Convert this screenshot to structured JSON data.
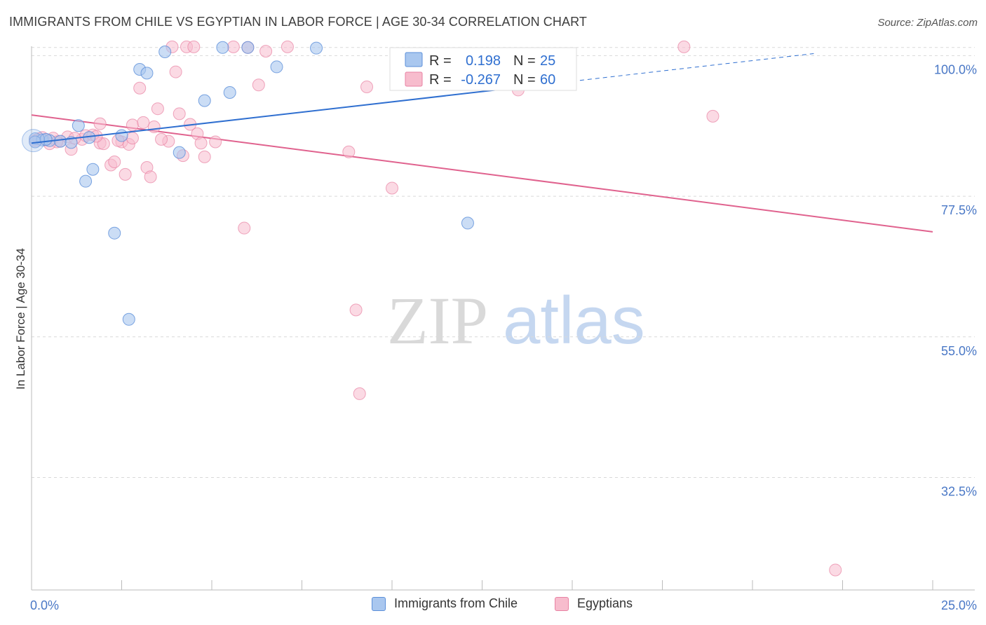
{
  "title": "IMMIGRANTS FROM CHILE VS EGYPTIAN IN LABOR FORCE | AGE 30-34 CORRELATION CHART",
  "source": "Source: ZipAtlas.com",
  "watermark": {
    "zip": "ZIP",
    "atlas": "atlas"
  },
  "colors": {
    "blue_fill": "#a9c7ef",
    "blue_stroke": "#5b8fd9",
    "blue_line": "#2f6fd0",
    "pink_fill": "#f7bccd",
    "pink_stroke": "#e882a3",
    "pink_line": "#e0628e",
    "axis_label": "#4a78c6",
    "grid": "#d9d9d9"
  },
  "legend": {
    "rows": [
      {
        "r_label": "R =",
        "r_value": "0.198",
        "n_label": "N =",
        "n_value": "25"
      },
      {
        "r_label": "R =",
        "r_value": "-0.267",
        "n_label": "N =",
        "n_value": "60"
      }
    ]
  },
  "bottom_legend": {
    "series1": "Immigrants from Chile",
    "series2": "Egyptians"
  },
  "chart_data": {
    "type": "scatter",
    "title": "IMMIGRANTS FROM CHILE VS EGYPTIAN IN LABOR FORCE | AGE 30-34 CORRELATION CHART",
    "xlabel": "",
    "ylabel": "In Labor Force | Age 30-34",
    "xlim": [
      0,
      25
    ],
    "ylim": [
      14.5,
      101.5
    ],
    "x_tick_labels": [
      "0.0%",
      "25.0%"
    ],
    "y_ticks": [
      32.5,
      55.0,
      77.5,
      100.0
    ],
    "y_tick_labels": [
      "32.5%",
      "55.0%",
      "77.5%",
      "100.0%"
    ],
    "grid": true,
    "series": [
      {
        "name": "Immigrants from Chile",
        "r": 0.198,
        "n": 25,
        "trend": {
          "x0": 0,
          "y0": 86.0,
          "x1": 25,
          "y1": 102.5,
          "solid_until_x": 15
        },
        "points": [
          [
            0.1,
            86.7
          ],
          [
            0.3,
            86.5
          ],
          [
            0.5,
            86.4
          ],
          [
            0.8,
            86.3
          ],
          [
            1.1,
            86.1
          ],
          [
            1.3,
            88.8
          ],
          [
            1.6,
            86.9
          ],
          [
            2.5,
            87.2
          ],
          [
            1.7,
            81.8
          ],
          [
            1.5,
            79.9
          ],
          [
            2.3,
            71.6
          ],
          [
            2.7,
            57.8
          ],
          [
            3.0,
            97.8
          ],
          [
            3.2,
            97.2
          ],
          [
            3.7,
            100.6
          ],
          [
            4.1,
            84.5
          ],
          [
            4.8,
            92.8
          ],
          [
            5.5,
            94.1
          ],
          [
            5.3,
            101.3
          ],
          [
            6.0,
            101.3
          ],
          [
            6.8,
            98.2
          ],
          [
            7.9,
            101.2
          ],
          [
            12.1,
            73.2
          ],
          [
            0.1,
            86.2
          ],
          [
            0.4,
            86.6
          ]
        ]
      },
      {
        "name": "Egyptians",
        "r": -0.267,
        "n": 60,
        "trend": {
          "x0": 0,
          "y0": 90.5,
          "x1": 25,
          "y1": 71.8
        },
        "points": [
          [
            0.1,
            86.4
          ],
          [
            0.2,
            86.7
          ],
          [
            0.4,
            86.5
          ],
          [
            0.6,
            86.8
          ],
          [
            0.8,
            86.3
          ],
          [
            1.0,
            87.0
          ],
          [
            1.1,
            85.0
          ],
          [
            1.4,
            86.6
          ],
          [
            1.5,
            87.2
          ],
          [
            1.7,
            87.3
          ],
          [
            1.9,
            89.1
          ],
          [
            1.9,
            86.0
          ],
          [
            2.2,
            82.5
          ],
          [
            2.3,
            83.0
          ],
          [
            2.5,
            86.2
          ],
          [
            2.6,
            81.0
          ],
          [
            2.7,
            85.8
          ],
          [
            2.8,
            86.8
          ],
          [
            2.8,
            88.9
          ],
          [
            3.0,
            94.8
          ],
          [
            3.1,
            89.3
          ],
          [
            3.2,
            82.1
          ],
          [
            3.3,
            80.6
          ],
          [
            3.4,
            88.6
          ],
          [
            3.5,
            91.5
          ],
          [
            3.8,
            86.3
          ],
          [
            3.9,
            101.4
          ],
          [
            4.0,
            97.4
          ],
          [
            4.1,
            90.7
          ],
          [
            4.2,
            84.0
          ],
          [
            4.3,
            101.4
          ],
          [
            4.4,
            89.0
          ],
          [
            4.5,
            101.4
          ],
          [
            4.6,
            87.5
          ],
          [
            4.8,
            83.8
          ],
          [
            5.1,
            86.2
          ],
          [
            5.6,
            101.4
          ],
          [
            5.9,
            72.4
          ],
          [
            6.0,
            101.3
          ],
          [
            6.3,
            95.3
          ],
          [
            6.5,
            100.7
          ],
          [
            7.1,
            101.4
          ],
          [
            8.8,
            84.6
          ],
          [
            9.0,
            59.3
          ],
          [
            9.1,
            45.9
          ],
          [
            9.3,
            95.0
          ],
          [
            10.0,
            78.8
          ],
          [
            13.5,
            94.5
          ],
          [
            18.1,
            101.4
          ],
          [
            18.9,
            90.3
          ],
          [
            22.3,
            17.7
          ],
          [
            0.3,
            86.9
          ],
          [
            0.7,
            86.2
          ],
          [
            1.2,
            86.8
          ],
          [
            2.0,
            85.9
          ],
          [
            2.4,
            86.4
          ],
          [
            3.6,
            86.6
          ],
          [
            4.7,
            86.0
          ],
          [
            0.5,
            85.9
          ],
          [
            1.8,
            87.1
          ]
        ]
      }
    ]
  }
}
